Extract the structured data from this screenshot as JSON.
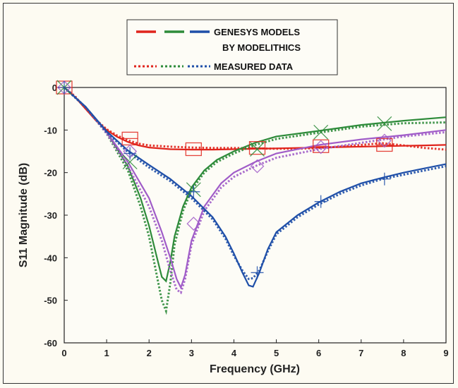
{
  "chart_data": {
    "type": "line",
    "xlabel": "Frequency (GHz)",
    "ylabel": "S11 Magnitude (dB)",
    "xlim": [
      0,
      9
    ],
    "ylim": [
      -60,
      0
    ],
    "xticks": [
      "0",
      "1",
      "2",
      "3",
      "4",
      "5",
      "6",
      "7",
      "8",
      "9"
    ],
    "yticks": [
      "0",
      "-10",
      "-20",
      "-30",
      "-40",
      "-50",
      "-60"
    ],
    "grid": false,
    "legend": {
      "placement": "top-center",
      "line1": "GENESYS MODELS",
      "line2": "BY MODELITHICS",
      "line3": "MEASURED DATA"
    },
    "colors": {
      "red": "#e0241c",
      "green": "#2e8b3a",
      "blue": "#1f4fa8",
      "purple": "#a05cc8"
    },
    "series": [
      {
        "color": "#e0241c",
        "marker": "square",
        "x": [
          0,
          0.25,
          0.5,
          0.75,
          1,
          1.25,
          1.5,
          1.75,
          2,
          2.5,
          3,
          3.5,
          4,
          4.5,
          5,
          5.5,
          6,
          6.5,
          7,
          7.5,
          8,
          8.5,
          9
        ],
        "y": [
          0,
          -2.2,
          -5.0,
          -7.8,
          -10.0,
          -11.6,
          -12.8,
          -13.6,
          -14.1,
          -14.5,
          -14.6,
          -14.6,
          -14.5,
          -14.4,
          -14.3,
          -14.2,
          -14.1,
          -14.0,
          -13.9,
          -13.8,
          -13.7,
          -13.6,
          -13.5
        ],
        "measured_y": [
          0,
          -2.0,
          -4.9,
          -7.6,
          -9.8,
          -11.3,
          -12.4,
          -13.2,
          -13.6,
          -13.9,
          -14.1,
          -14.2,
          -14.2,
          -14.3,
          -14.4,
          -14.4,
          -14.2,
          -13.9,
          -13.5,
          -13.1,
          -13.6,
          -14.2,
          -14.6
        ],
        "markers_x": [
          0,
          1.55,
          3.05,
          4.55,
          6.05,
          7.55
        ],
        "markers_y": [
          0,
          -12.0,
          -14.5,
          -14.2,
          -13.8,
          -13.5
        ]
      },
      {
        "color": "#2e8b3a",
        "marker": "x",
        "x": [
          0,
          0.5,
          1,
          1.5,
          1.8,
          2.0,
          2.2,
          2.3,
          2.4,
          2.5,
          2.6,
          2.8,
          3.0,
          3.3,
          3.6,
          4,
          4.5,
          5,
          6,
          7,
          8,
          9
        ],
        "y": [
          0,
          -4.5,
          -10.5,
          -18.5,
          -26,
          -32.5,
          -40.5,
          -44.5,
          -45.5,
          -41,
          -35,
          -28,
          -23.5,
          -19.5,
          -17,
          -15,
          -13,
          -11.5,
          -10.2,
          -8.8,
          -7.8,
          -7.0
        ],
        "measured_y": [
          0,
          -4.6,
          -10.8,
          -19.5,
          -28,
          -35,
          -45,
          -50,
          -52.5,
          -46,
          -37,
          -29,
          -24.2,
          -20,
          -17.5,
          -15.5,
          -13.5,
          -12.1,
          -10.6,
          -9.2,
          -8.4,
          -8.2
        ],
        "markers_x": [
          0,
          1.55,
          3.05,
          4.55,
          6.05,
          7.55
        ],
        "markers_y": [
          0,
          -17.5,
          -24,
          -14.5,
          -10.5,
          -8.5
        ]
      },
      {
        "color": "#a05cc8",
        "marker": "diamond",
        "x": [
          0,
          0.5,
          1,
          1.5,
          2.0,
          2.3,
          2.5,
          2.65,
          2.75,
          2.85,
          3.0,
          3.3,
          3.7,
          4,
          4.5,
          5,
          6,
          7,
          8,
          9
        ],
        "y": [
          0,
          -4.5,
          -10.5,
          -17.5,
          -26,
          -34,
          -40,
          -45,
          -47,
          -44,
          -36,
          -28,
          -22.5,
          -20,
          -17.5,
          -15.5,
          -13.5,
          -12.2,
          -11.2,
          -10
        ],
        "measured_y": [
          0,
          -4.6,
          -10.8,
          -18.5,
          -28,
          -36,
          -43,
          -47.5,
          -48.2,
          -45,
          -37,
          -29,
          -23.5,
          -21,
          -18.5,
          -16.5,
          -14.5,
          -13,
          -11.5,
          -10.5
        ],
        "markers_x": [
          0,
          1.55,
          3.05,
          4.55,
          6.05,
          7.55
        ],
        "markers_y": [
          0,
          -15,
          -32,
          -18.5,
          -14,
          -12.5
        ]
      },
      {
        "color": "#1f4fa8",
        "marker": "plus",
        "x": [
          0,
          0.5,
          1,
          1.5,
          2.0,
          2.5,
          3.0,
          3.5,
          3.8,
          4.0,
          4.2,
          4.35,
          4.45,
          4.6,
          4.8,
          5.0,
          5.5,
          6.0,
          6.5,
          7,
          7.5,
          8,
          8.5,
          9
        ],
        "y": [
          0,
          -4.5,
          -10.3,
          -14.8,
          -18.2,
          -21.5,
          -25.5,
          -30.5,
          -35,
          -39,
          -43.5,
          -46.5,
          -46.8,
          -43.5,
          -38,
          -34,
          -30,
          -27,
          -24.5,
          -22.5,
          -21.2,
          -20,
          -19,
          -18
        ],
        "measured_y": [
          0,
          -4.6,
          -10.5,
          -15.2,
          -18.8,
          -22,
          -26,
          -31,
          -35.5,
          -39.5,
          -43,
          -45,
          -44.8,
          -43,
          -38.5,
          -34.5,
          -30.5,
          -27.5,
          -25,
          -23,
          -21.5,
          -20.5,
          -19.5,
          -18.5
        ],
        "markers_x": [
          0,
          1.55,
          3.05,
          4.55,
          6.05,
          7.55
        ],
        "markers_y": [
          0,
          -15.5,
          -24.5,
          -43.5,
          -26.8,
          -21.5
        ]
      }
    ]
  }
}
